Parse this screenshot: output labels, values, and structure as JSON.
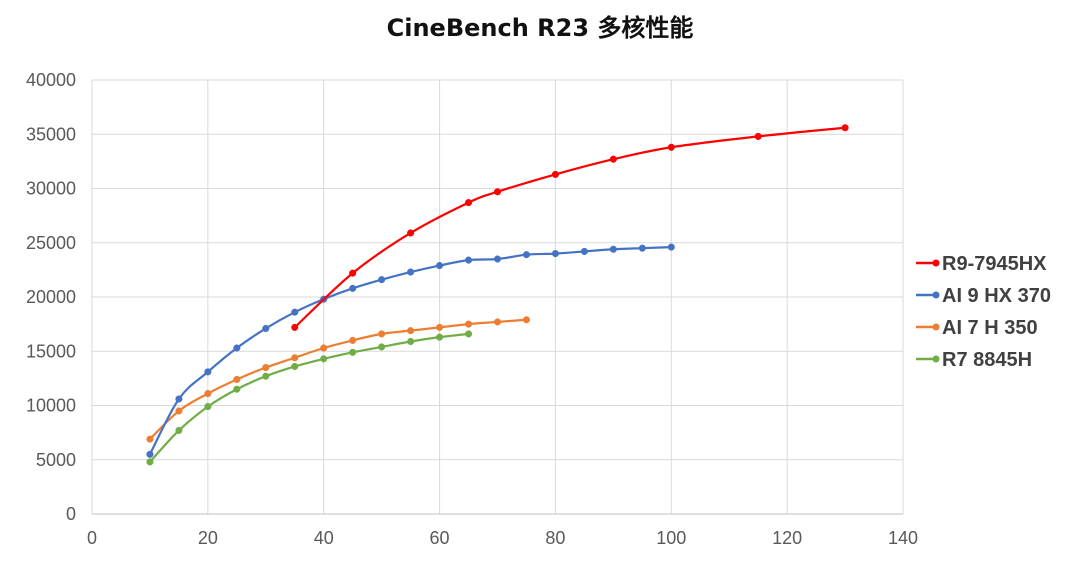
{
  "chart_data": {
    "type": "line",
    "title": "CineBench R23 多核性能",
    "xlabel": "",
    "ylabel": "",
    "xlim": [
      0,
      140
    ],
    "ylim": [
      0,
      40000
    ],
    "xticks": [
      0,
      20,
      40,
      60,
      80,
      100,
      120,
      140
    ],
    "yticks": [
      0,
      5000,
      10000,
      15000,
      20000,
      25000,
      30000,
      35000,
      40000
    ],
    "grid": true,
    "legend_position": "right",
    "series": [
      {
        "name": "R9-7945HX",
        "color": "#ff0000",
        "x": [
          35,
          45,
          55,
          65,
          70,
          80,
          90,
          100,
          115,
          130
        ],
        "y": [
          17200,
          22200,
          25900,
          28700,
          29700,
          31300,
          32700,
          33800,
          34800,
          35600
        ]
      },
      {
        "name": "AI 9 HX 370",
        "color": "#4472c4",
        "x": [
          10,
          15,
          20,
          25,
          30,
          35,
          40,
          45,
          50,
          55,
          60,
          65,
          70,
          75,
          80,
          85,
          90,
          95,
          100
        ],
        "y": [
          5500,
          10600,
          13100,
          15300,
          17100,
          18600,
          19800,
          20800,
          21600,
          22300,
          22900,
          23400,
          23500,
          23900,
          24000,
          24200,
          24400,
          24500,
          24600
        ]
      },
      {
        "name": "AI 7 H 350",
        "color": "#ed7d31",
        "x": [
          10,
          15,
          20,
          25,
          30,
          35,
          40,
          45,
          50,
          55,
          60,
          65,
          70,
          75
        ],
        "y": [
          6900,
          9500,
          11100,
          12400,
          13500,
          14400,
          15300,
          16000,
          16600,
          16900,
          17200,
          17500,
          17700,
          17900
        ]
      },
      {
        "name": "R7 8845H",
        "color": "#70ad47",
        "x": [
          10,
          15,
          20,
          25,
          30,
          35,
          40,
          45,
          50,
          55,
          60,
          65
        ],
        "y": [
          4800,
          7700,
          9900,
          11500,
          12700,
          13600,
          14300,
          14900,
          15400,
          15900,
          16300,
          16600
        ]
      }
    ]
  }
}
